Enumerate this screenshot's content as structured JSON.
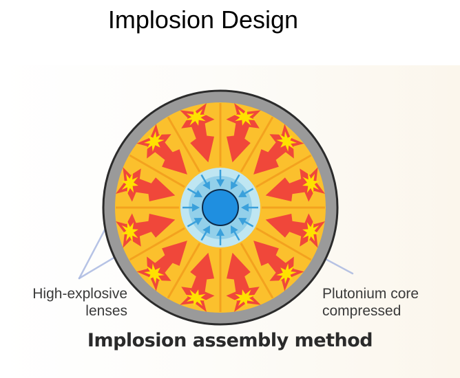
{
  "slide": {
    "title": "Implosion Design"
  },
  "diagram": {
    "labels": {
      "left_line1": "High-explosive",
      "left_line2": "lenses",
      "right_line1": "Plutonium core",
      "right_line2": "compressed"
    },
    "caption": "Implosion assembly method",
    "segment_count": 12,
    "inner_arrow_count": 12,
    "colors": {
      "casing": "#9a9a9a",
      "casing_edge": "#2b2b2b",
      "explosive_fill": "#fbc02d",
      "segment_line": "#f3a21f",
      "blast_arrow": "#f0473a",
      "blast_burst": "#ffe100",
      "tamper_outer": "#bfe6f2",
      "tamper_inner": "#93d0ea",
      "inner_arrow": "#3aa0db",
      "core": "#1f8fe0",
      "pointer_line": "#a9b8e0"
    }
  }
}
